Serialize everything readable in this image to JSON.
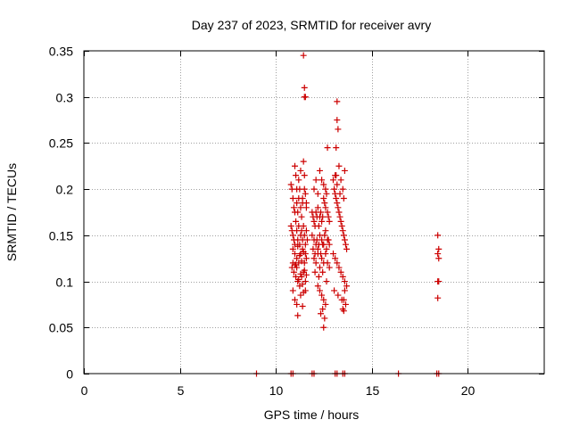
{
  "chart_data": {
    "type": "scatter",
    "title": "Day 237 of 2023, SRMTID for receiver avry",
    "xlabel": "GPS time / hours",
    "ylabel": "SRMTID / TECUs",
    "xlim": [
      0,
      24
    ],
    "ylim": [
      0,
      0.35
    ],
    "xticks": [
      0,
      5,
      10,
      15,
      20
    ],
    "xtick_labels": [
      "0",
      "5",
      "10",
      "15",
      "20"
    ],
    "yticks": [
      0,
      0.05,
      0.1,
      0.15,
      0.2,
      0.25,
      0.3,
      0.35
    ],
    "ytick_labels": [
      "0",
      "0.05",
      "0.1",
      "0.15",
      "0.2",
      "0.25",
      "0.3",
      "0.35"
    ],
    "grid": true,
    "marker": "plus",
    "color": "#cc0000",
    "series": [
      {
        "name": "SRMTID",
        "x": [
          9.0,
          10.8,
          10.9,
          11.9,
          12.0,
          13.1,
          13.2,
          13.5,
          13.6,
          16.4,
          18.4,
          18.5,
          10.8,
          10.85,
          10.9,
          10.95,
          11.0,
          11.0,
          11.05,
          11.1,
          11.1,
          11.15,
          11.2,
          11.2,
          11.25,
          11.3,
          11.3,
          11.35,
          11.4,
          11.4,
          11.45,
          11.5,
          11.5,
          11.55,
          11.6,
          11.6,
          10.8,
          10.85,
          10.9,
          10.95,
          11.0,
          11.05,
          11.1,
          11.15,
          11.2,
          11.25,
          11.3,
          11.35,
          11.4,
          11.45,
          11.5,
          11.55,
          11.6,
          11.65,
          10.9,
          11.0,
          11.1,
          11.2,
          11.3,
          11.4,
          11.5,
          11.6,
          11.05,
          11.25,
          11.45,
          11.15,
          11.35,
          11.55,
          10.85,
          10.95,
          11.05,
          11.15,
          11.25,
          11.35,
          11.45,
          11.55,
          10.9,
          11.1,
          11.3,
          11.5,
          11.0,
          11.2,
          11.4,
          11.6,
          10.9,
          11.0,
          11.15,
          11.3,
          11.45,
          11.55,
          11.1,
          11.4,
          11.45,
          11.5,
          11.5,
          11.55,
          11.9,
          11.95,
          12.0,
          12.05,
          12.1,
          12.15,
          12.2,
          12.25,
          12.3,
          12.35,
          12.4,
          12.45,
          12.5,
          12.55,
          12.6,
          12.65,
          12.7,
          12.75,
          12.8,
          11.9,
          12.0,
          12.1,
          12.2,
          12.3,
          12.4,
          12.5,
          12.6,
          12.7,
          12.8,
          11.95,
          12.05,
          12.15,
          12.25,
          12.35,
          12.45,
          12.55,
          12.65,
          12.75,
          12.0,
          12.1,
          12.2,
          12.3,
          12.4,
          12.5,
          12.6,
          12.7,
          12.8,
          12.05,
          12.25,
          12.45,
          12.65,
          12.2,
          12.3,
          12.4,
          12.5,
          12.6,
          12.35,
          12.45,
          12.55,
          12.5,
          12.0,
          12.1,
          12.3,
          12.5,
          12.7,
          12.2,
          12.4,
          12.6,
          13.0,
          13.05,
          13.1,
          13.15,
          13.2,
          13.25,
          13.3,
          13.35,
          13.4,
          13.45,
          13.5,
          13.55,
          13.6,
          13.65,
          13.7,
          13.0,
          13.1,
          13.2,
          13.3,
          13.4,
          13.5,
          13.6,
          13.7,
          13.05,
          13.25,
          13.45,
          13.65,
          13.1,
          13.2,
          13.3,
          13.4,
          13.5,
          13.6,
          13.15,
          13.35,
          13.55,
          13.15,
          13.2,
          13.25,
          13.2,
          13.5,
          13.55,
          13.6,
          13.55,
          18.45,
          18.5,
          18.45,
          18.5,
          18.45,
          18.5,
          18.45
        ],
        "y": [
          0,
          0,
          0,
          0,
          0,
          0,
          0,
          0,
          0,
          0,
          0,
          0,
          0.205,
          0.2,
          0.19,
          0.18,
          0.225,
          0.175,
          0.215,
          0.2,
          0.185,
          0.175,
          0.21,
          0.19,
          0.2,
          0.18,
          0.22,
          0.17,
          0.19,
          0.185,
          0.23,
          0.215,
          0.2,
          0.195,
          0.185,
          0.18,
          0.16,
          0.155,
          0.15,
          0.145,
          0.14,
          0.165,
          0.155,
          0.145,
          0.16,
          0.14,
          0.15,
          0.155,
          0.145,
          0.16,
          0.15,
          0.14,
          0.155,
          0.145,
          0.135,
          0.13,
          0.125,
          0.12,
          0.13,
          0.135,
          0.12,
          0.125,
          0.118,
          0.128,
          0.132,
          0.138,
          0.122,
          0.13,
          0.115,
          0.11,
          0.105,
          0.1,
          0.095,
          0.105,
          0.11,
          0.1,
          0.12,
          0.115,
          0.108,
          0.112,
          0.118,
          0.102,
          0.097,
          0.107,
          0.09,
          0.08,
          0.063,
          0.085,
          0.088,
          0.09,
          0.075,
          0.073,
          0.345,
          0.31,
          0.3,
          0.3,
          0.175,
          0.17,
          0.165,
          0.16,
          0.175,
          0.17,
          0.18,
          0.16,
          0.17,
          0.175,
          0.165,
          0.17,
          0.19,
          0.185,
          0.18,
          0.195,
          0.175,
          0.17,
          0.165,
          0.15,
          0.145,
          0.14,
          0.135,
          0.15,
          0.145,
          0.14,
          0.155,
          0.145,
          0.14,
          0.135,
          0.13,
          0.145,
          0.14,
          0.13,
          0.14,
          0.15,
          0.135,
          0.145,
          0.125,
          0.12,
          0.13,
          0.115,
          0.125,
          0.12,
          0.13,
          0.12,
          0.115,
          0.11,
          0.105,
          0.11,
          0.1,
          0.095,
          0.09,
          0.085,
          0.08,
          0.075,
          0.065,
          0.07,
          0.06,
          0.05,
          0.2,
          0.21,
          0.22,
          0.205,
          0.245,
          0.195,
          0.21,
          0.2,
          0.21,
          0.2,
          0.195,
          0.19,
          0.185,
          0.18,
          0.175,
          0.17,
          0.165,
          0.16,
          0.155,
          0.15,
          0.145,
          0.14,
          0.135,
          0.13,
          0.125,
          0.12,
          0.115,
          0.11,
          0.105,
          0.1,
          0.095,
          0.09,
          0.085,
          0.08,
          0.075,
          0.215,
          0.205,
          0.225,
          0.21,
          0.2,
          0.22,
          0.215,
          0.195,
          0.19,
          0.245,
          0.275,
          0.265,
          0.295,
          0.07,
          0.068,
          0.09,
          0.08,
          0.15,
          0.135,
          0.13,
          0.125,
          0.1,
          0.1,
          0.082
        ]
      }
    ]
  }
}
